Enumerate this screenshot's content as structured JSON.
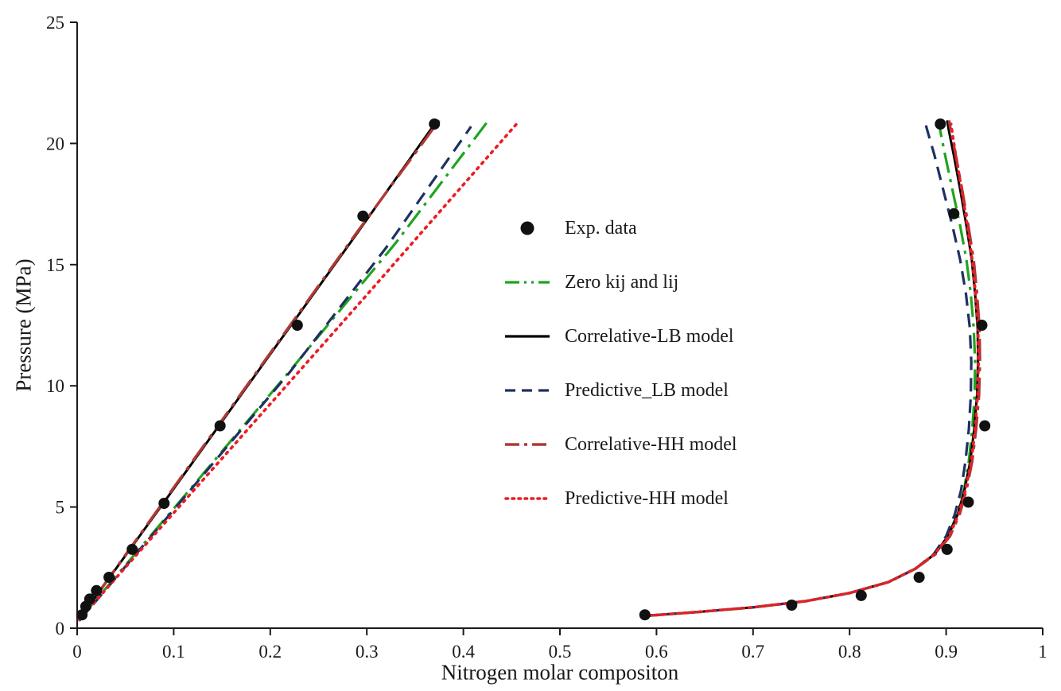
{
  "chart_data": {
    "type": "scatter",
    "title": "",
    "xlabel": "Nitrogen molar compositon",
    "ylabel": "Pressure (MPa)",
    "xlim": [
      0,
      1
    ],
    "ylim": [
      0,
      25
    ],
    "xticks": [
      "0",
      "0.1",
      "0.2",
      "0.3",
      "0.4",
      "0.5",
      "0.6",
      "0.7",
      "0.8",
      "0.9",
      "1"
    ],
    "yticks": [
      "0",
      "5",
      "10",
      "15",
      "20",
      "25"
    ],
    "grid": false,
    "legend_position": "center-inside",
    "axis_color": "#1a1a1a",
    "series": [
      {
        "name": "Exp. data",
        "type": "scatter",
        "marker": "circle",
        "color": "#111111",
        "points": [
          [
            0.005,
            0.55
          ],
          [
            0.009,
            0.9
          ],
          [
            0.013,
            1.2
          ],
          [
            0.02,
            1.55
          ],
          [
            0.033,
            2.1
          ],
          [
            0.057,
            3.25
          ],
          [
            0.09,
            5.15
          ],
          [
            0.148,
            8.35
          ],
          [
            0.228,
            12.5
          ],
          [
            0.296,
            17.0
          ],
          [
            0.37,
            20.8
          ],
          [
            0.588,
            0.55
          ],
          [
            0.74,
            0.95
          ],
          [
            0.812,
            1.35
          ],
          [
            0.872,
            2.1
          ],
          [
            0.901,
            3.25
          ],
          [
            0.923,
            5.2
          ],
          [
            0.94,
            8.35
          ],
          [
            0.937,
            12.5
          ],
          [
            0.908,
            17.1
          ],
          [
            0.894,
            20.8
          ]
        ]
      },
      {
        "name": "Zero kij and lij",
        "type": "line",
        "color": "#1fa41f",
        "dash": "26 8 4 8",
        "width": 3.2,
        "branches": [
          [
            [
              0.002,
              0.35
            ],
            [
              0.11,
              5.4
            ],
            [
              0.22,
              10.6
            ],
            [
              0.33,
              15.9
            ],
            [
              0.425,
              20.9
            ]
          ],
          [
            [
              0.585,
              0.5
            ],
            [
              0.64,
              0.66
            ],
            [
              0.7,
              0.86
            ],
            [
              0.755,
              1.12
            ],
            [
              0.8,
              1.45
            ],
            [
              0.84,
              1.9
            ],
            [
              0.868,
              2.45
            ],
            [
              0.888,
              3.05
            ],
            [
              0.902,
              3.8
            ],
            [
              0.9115,
              4.7
            ],
            [
              0.9185,
              5.7
            ],
            [
              0.9235,
              6.9
            ],
            [
              0.927,
              8.2
            ],
            [
              0.9295,
              9.6
            ],
            [
              0.93,
              11.0
            ],
            [
              0.9285,
              12.4
            ],
            [
              0.9255,
              13.8
            ],
            [
              0.921,
              15.2
            ],
            [
              0.9145,
              16.6
            ],
            [
              0.907,
              18.0
            ],
            [
              0.899,
              19.5
            ],
            [
              0.894,
              20.5
            ],
            [
              0.8925,
              20.95
            ]
          ]
        ]
      },
      {
        "name": "Correlative-LB model",
        "type": "line",
        "color": "#000000",
        "dash": "",
        "width": 3,
        "branches": [
          [
            [
              0.002,
              0.35
            ],
            [
              0.09,
              5.2
            ],
            [
              0.19,
              10.75
            ],
            [
              0.29,
              16.3
            ],
            [
              0.372,
              20.9
            ]
          ],
          [
            [
              0.585,
              0.5
            ],
            [
              0.64,
              0.66
            ],
            [
              0.7,
              0.86
            ],
            [
              0.755,
              1.12
            ],
            [
              0.8,
              1.45
            ],
            [
              0.84,
              1.9
            ],
            [
              0.868,
              2.45
            ],
            [
              0.888,
              3.05
            ],
            [
              0.902,
              3.8
            ],
            [
              0.912,
              4.7
            ],
            [
              0.919,
              5.7
            ],
            [
              0.925,
              6.9
            ],
            [
              0.929,
              8.2
            ],
            [
              0.932,
              9.6
            ],
            [
              0.933,
              11.0
            ],
            [
              0.9325,
              12.4
            ],
            [
              0.93,
              13.8
            ],
            [
              0.9265,
              15.2
            ],
            [
              0.921,
              16.6
            ],
            [
              0.915,
              18.0
            ],
            [
              0.908,
              19.5
            ],
            [
              0.903,
              20.5
            ],
            [
              0.901,
              20.95
            ]
          ]
        ]
      },
      {
        "name": "Predictive_LB model",
        "type": "line",
        "color": "#1f3061",
        "dash": "17 10",
        "width": 3.2,
        "branches": [
          [
            [
              0.002,
              0.3
            ],
            [
              0.11,
              5.35
            ],
            [
              0.22,
              10.55
            ],
            [
              0.32,
              15.7
            ],
            [
              0.408,
              20.7
            ]
          ],
          [
            [
              0.585,
              0.5
            ],
            [
              0.64,
              0.66
            ],
            [
              0.7,
              0.86
            ],
            [
              0.755,
              1.12
            ],
            [
              0.8,
              1.45
            ],
            [
              0.84,
              1.9
            ],
            [
              0.868,
              2.45
            ],
            [
              0.887,
              3.05
            ],
            [
              0.9,
              3.8
            ],
            [
              0.909,
              4.7
            ],
            [
              0.9155,
              5.7
            ],
            [
              0.92,
              6.9
            ],
            [
              0.9235,
              8.2
            ],
            [
              0.9255,
              9.6
            ],
            [
              0.926,
              11.0
            ],
            [
              0.9245,
              12.4
            ],
            [
              0.9205,
              13.8
            ],
            [
              0.9145,
              15.2
            ],
            [
              0.9065,
              16.6
            ],
            [
              0.8975,
              18.0
            ],
            [
              0.888,
              19.5
            ],
            [
              0.8815,
              20.4
            ],
            [
              0.879,
              20.75
            ]
          ]
        ]
      },
      {
        "name": "Correlative-HH model",
        "type": "line",
        "color": "#ae3935",
        "dash": "28 8 5 8",
        "width": 3.4,
        "branches": [
          [
            [
              0.002,
              0.35
            ],
            [
              0.09,
              5.25
            ],
            [
              0.19,
              10.8
            ],
            [
              0.29,
              16.35
            ],
            [
              0.375,
              20.95
            ]
          ],
          [
            [
              0.585,
              0.5
            ],
            [
              0.64,
              0.66
            ],
            [
              0.7,
              0.86
            ],
            [
              0.755,
              1.12
            ],
            [
              0.8,
              1.45
            ],
            [
              0.84,
              1.9
            ],
            [
              0.868,
              2.45
            ],
            [
              0.889,
              3.05
            ],
            [
              0.904,
              3.8
            ],
            [
              0.914,
              4.7
            ],
            [
              0.921,
              5.7
            ],
            [
              0.927,
              6.9
            ],
            [
              0.931,
              8.2
            ],
            [
              0.934,
              9.6
            ],
            [
              0.935,
              11.0
            ],
            [
              0.9345,
              12.4
            ],
            [
              0.932,
              13.8
            ],
            [
              0.9285,
              15.2
            ],
            [
              0.923,
              16.6
            ],
            [
              0.917,
              18.0
            ],
            [
              0.91,
              19.5
            ],
            [
              0.905,
              20.5
            ],
            [
              0.903,
              20.95
            ]
          ]
        ]
      },
      {
        "name": "Predictive-HH model",
        "type": "line",
        "color": "#ec1c24",
        "dash": "2.5 6.5",
        "cap": "round",
        "width": 3.6,
        "branches": [
          [
            [
              0.002,
              0.35
            ],
            [
              0.15,
              7.0
            ],
            [
              0.3,
              13.75
            ],
            [
              0.455,
              20.8
            ]
          ],
          [
            [
              0.585,
              0.5
            ],
            [
              0.64,
              0.66
            ],
            [
              0.7,
              0.86
            ],
            [
              0.755,
              1.12
            ],
            [
              0.8,
              1.45
            ],
            [
              0.84,
              1.9
            ],
            [
              0.868,
              2.45
            ],
            [
              0.888,
              3.05
            ],
            [
              0.903,
              3.8
            ],
            [
              0.913,
              4.7
            ],
            [
              0.92,
              5.7
            ],
            [
              0.926,
              6.9
            ],
            [
              0.93,
              8.2
            ],
            [
              0.9325,
              9.6
            ],
            [
              0.9335,
              11.0
            ],
            [
              0.933,
              12.4
            ],
            [
              0.9305,
              13.8
            ],
            [
              0.927,
              15.2
            ],
            [
              0.922,
              16.6
            ],
            [
              0.9165,
              18.0
            ],
            [
              0.91,
              19.5
            ],
            [
              0.9065,
              20.4
            ],
            [
              0.905,
              20.8
            ]
          ]
        ]
      }
    ]
  }
}
